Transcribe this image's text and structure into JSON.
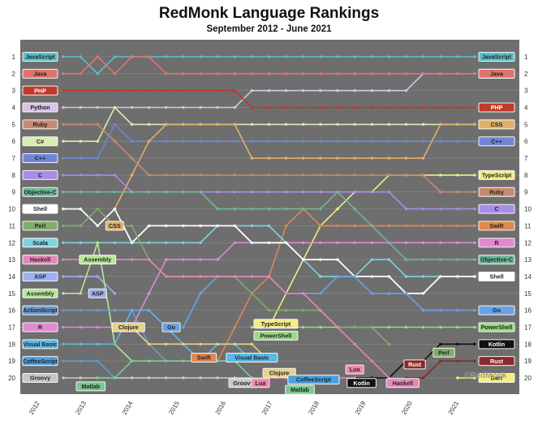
{
  "title": "RedMonk Language Rankings",
  "subtitle": "September 2012 - June 2021",
  "watermark": "©RedMonk",
  "chart_data": {
    "type": "line",
    "title": "RedMonk Language Rankings",
    "subtitle": "September 2012 - June 2021",
    "y_ticks": [
      "1",
      "2",
      "3",
      "4",
      "5",
      "6",
      "7",
      "8",
      "9",
      "10",
      "11",
      "12",
      "13",
      "14",
      "15",
      "16",
      "17",
      "18",
      "19",
      "20"
    ],
    "x_ticks": [
      "2012",
      "2013",
      "2014",
      "2015",
      "2016",
      "2017",
      "2018",
      "2019",
      "2020",
      "2021"
    ],
    "ylim": [
      1,
      20
    ],
    "y_inverted": true,
    "xlim": [
      0,
      24
    ],
    "background": "#6e6e6e",
    "series": [
      {
        "name": "JavaScript",
        "color": "#5bc0c8",
        "start": "JavaScript",
        "end": "JavaScript",
        "start_x": 0,
        "values": [
          1,
          1,
          2,
          1,
          1,
          1,
          1,
          1,
          1,
          1,
          1,
          1,
          1,
          1,
          1,
          1,
          1,
          1,
          1,
          1,
          1,
          1,
          1,
          1,
          1
        ]
      },
      {
        "name": "Python",
        "color": "#d6c4e8",
        "start": "Python",
        "end": "Python",
        "start_x": 0,
        "values": [
          4,
          4,
          4,
          4,
          4,
          4,
          4,
          4,
          4,
          4,
          4,
          3,
          3,
          3,
          3,
          3,
          3,
          3,
          3,
          3,
          3,
          2,
          2,
          2,
          2
        ]
      },
      {
        "name": "Java",
        "color": "#e0746c",
        "start": "Java",
        "end": "Java",
        "start_x": 0,
        "values": [
          2,
          2,
          1,
          2,
          1,
          1,
          2,
          2,
          2,
          2,
          2,
          2,
          2,
          2,
          2,
          2,
          2,
          2,
          2,
          2,
          2,
          2,
          2,
          2,
          2
        ]
      },
      {
        "name": "PHP",
        "color": "#c0392b",
        "start": "PHP",
        "end": "PHP",
        "start_x": 0,
        "values": [
          3,
          3,
          3,
          3,
          3,
          3,
          3,
          3,
          3,
          3,
          3,
          4,
          4,
          4,
          4,
          4,
          4,
          4,
          4,
          4,
          4,
          4,
          4,
          4,
          4
        ]
      },
      {
        "name": "C#",
        "color": "#d9ebb0",
        "start": "C#",
        "end": "C#",
        "start_x": 0,
        "values": [
          6,
          6,
          6,
          4,
          5,
          5,
          5,
          5,
          5,
          5,
          5,
          5,
          5,
          5,
          5,
          5,
          5,
          5,
          5,
          5,
          5,
          5,
          5,
          5,
          5
        ]
      },
      {
        "name": "C++",
        "color": "#6f86d8",
        "start": "C++",
        "end": "C++",
        "start_x": 0,
        "values": [
          7,
          7,
          7,
          5,
          6,
          6,
          6,
          6,
          6,
          6,
          6,
          6,
          6,
          6,
          6,
          6,
          6,
          6,
          6,
          6,
          6,
          6,
          6,
          6,
          6
        ]
      },
      {
        "name": "CSS",
        "color": "#e0b06a",
        "start": "CSS",
        "end": "CSS",
        "start_x": 3,
        "values": [
          null,
          null,
          null,
          10,
          8,
          6,
          5,
          5,
          5,
          5,
          5,
          7,
          7,
          7,
          7,
          7,
          7,
          7,
          7,
          7,
          7,
          7,
          5,
          5,
          5
        ]
      },
      {
        "name": "TypeScript",
        "color": "#f2ee8a",
        "start": "TypeScript",
        "end": "TypeScript",
        "start_x": 12,
        "values": [
          null,
          null,
          null,
          null,
          null,
          null,
          null,
          null,
          null,
          null,
          null,
          null,
          17,
          15,
          13,
          11,
          10,
          9,
          9,
          8,
          8,
          8,
          8,
          8,
          8
        ]
      },
      {
        "name": "Ruby",
        "color": "#c78a72",
        "start": "Ruby",
        "end": "Ruby",
        "start_x": 0,
        "values": [
          5,
          5,
          5,
          6,
          7,
          8,
          8,
          8,
          8,
          8,
          8,
          8,
          8,
          8,
          8,
          8,
          8,
          8,
          8,
          8,
          8,
          8,
          9,
          9,
          9
        ]
      },
      {
        "name": "C",
        "color": "#a98ee8",
        "start": "C",
        "end": "C",
        "start_x": 0,
        "values": [
          8,
          8,
          8,
          8,
          9,
          9,
          9,
          9,
          9,
          9,
          9,
          9,
          9,
          9,
          9,
          9,
          9,
          9,
          9,
          9,
          10,
          10,
          10,
          10,
          10
        ]
      },
      {
        "name": "Swift",
        "color": "#e08850",
        "start": "Swift",
        "end": "Swift",
        "start_x": 9,
        "values": [
          null,
          null,
          null,
          null,
          null,
          null,
          null,
          null,
          null,
          19,
          17,
          15,
          14,
          11,
          10,
          11,
          11,
          11,
          11,
          11,
          11,
          11,
          11,
          11,
          11
        ]
      },
      {
        "name": "R",
        "color": "#e08ad0",
        "start": "R",
        "end": "R",
        "start_x": 0,
        "values": [
          17,
          17,
          17,
          17,
          17,
          15,
          13,
          13,
          13,
          13,
          12,
          12,
          12,
          12,
          12,
          12,
          12,
          12,
          12,
          12,
          12,
          12,
          12,
          12,
          12
        ]
      },
      {
        "name": "Objective-C",
        "color": "#6fb89a",
        "start": "Objective-C",
        "end": "Objective-C",
        "start_x": 0,
        "values": [
          9,
          9,
          9,
          9,
          9,
          9,
          9,
          9,
          9,
          10,
          10,
          10,
          10,
          10,
          10,
          10,
          9,
          10,
          11,
          12,
          13,
          13,
          13,
          13,
          13
        ]
      },
      {
        "name": "Scala",
        "color": "#7fd3e0",
        "start": "Scala",
        "end": "Scala",
        "start_x": 0,
        "values": [
          12,
          12,
          12,
          12,
          12,
          12,
          12,
          12,
          12,
          11,
          11,
          11,
          11,
          12,
          13,
          14,
          14,
          14,
          13,
          13,
          14,
          14,
          14,
          14,
          14
        ]
      },
      {
        "name": "Shell",
        "color": "#ffffff",
        "start": "Shell",
        "end": "Shell",
        "start_x": 0,
        "values": [
          10,
          10,
          11,
          10,
          12,
          11,
          11,
          11,
          11,
          11,
          11,
          12,
          12,
          12,
          13,
          13,
          13,
          14,
          14,
          14,
          15,
          15,
          14,
          14,
          14
        ]
      },
      {
        "name": "Go",
        "color": "#6aa2e6",
        "start": "Go",
        "end": "Go",
        "start_x": 7,
        "values": [
          null,
          null,
          null,
          null,
          null,
          null,
          null,
          17,
          15,
          14,
          14,
          14,
          14,
          15,
          15,
          15,
          14,
          14,
          15,
          15,
          15,
          16,
          16,
          16,
          16
        ]
      },
      {
        "name": "PowerShell",
        "color": "#9fd88a",
        "start": "PowerShell",
        "end": "PowerShell",
        "start_x": 11,
        "values": [
          null,
          null,
          null,
          null,
          null,
          null,
          null,
          null,
          null,
          null,
          null,
          17,
          17,
          17,
          17,
          17,
          17,
          17,
          17,
          17,
          17,
          17,
          17,
          17,
          17
        ]
      },
      {
        "name": "Kotlin",
        "color": "#111111",
        "start": "Kotlin",
        "end": "Kotlin",
        "start_x": 17,
        "values": [
          null,
          null,
          null,
          null,
          null,
          null,
          null,
          null,
          null,
          null,
          null,
          null,
          null,
          null,
          null,
          null,
          null,
          20,
          20,
          20,
          19,
          19,
          18,
          18,
          18
        ]
      },
      {
        "name": "Rust",
        "color": "#8b2a2a",
        "start": "Rust",
        "end": "Rust",
        "start_x": 19,
        "values": [
          null,
          null,
          null,
          null,
          null,
          null,
          null,
          null,
          null,
          null,
          null,
          null,
          null,
          null,
          null,
          null,
          null,
          null,
          null,
          null,
          20,
          20,
          19,
          19,
          19
        ]
      },
      {
        "name": "Dart",
        "color": "#f7f07a",
        "start": null,
        "end": "Dart",
        "start_x": 23,
        "values": [
          null,
          null,
          null,
          null,
          null,
          null,
          null,
          null,
          null,
          null,
          null,
          null,
          null,
          null,
          null,
          null,
          null,
          null,
          null,
          null,
          null,
          null,
          null,
          20,
          20
        ]
      },
      {
        "name": "Perl",
        "color": "#7fae6a",
        "start": "Perl",
        "end": null,
        "start_x": 0,
        "values": [
          11,
          11,
          10,
          11,
          11,
          13,
          14,
          14,
          14,
          14,
          14,
          15,
          16,
          16,
          16,
          16,
          17,
          17,
          17,
          18,
          null,
          null,
          null,
          null,
          null
        ]
      },
      {
        "name": "Haskell",
        "color": "#e487b8",
        "start": "Haskell",
        "end": null,
        "start_x": 0,
        "values": [
          13,
          13,
          13,
          13,
          13,
          13,
          14,
          14,
          14,
          14,
          14,
          14,
          14,
          15,
          15,
          16,
          17,
          18,
          19,
          20,
          null,
          null,
          null,
          null,
          null
        ]
      },
      {
        "name": "ASP",
        "color": "#9db0f0",
        "start": "ASP",
        "end": null,
        "start_x": 0,
        "values": [
          14,
          14,
          14,
          15,
          null,
          null,
          null,
          null,
          null,
          null,
          null,
          null,
          null,
          null,
          null,
          null,
          null,
          null,
          null,
          null,
          null,
          null,
          null,
          null,
          null
        ]
      },
      {
        "name": "Assembly",
        "color": "#b7e89a",
        "start": "Assembly",
        "end": null,
        "start_x": 0,
        "values": [
          15,
          15,
          12,
          18,
          19,
          19,
          19,
          19,
          19,
          19,
          19,
          19,
          null,
          null,
          null,
          null,
          null,
          null,
          null,
          null,
          null,
          null,
          null,
          null,
          null
        ]
      },
      {
        "name": "ActionScript",
        "color": "#6a9ad0",
        "start": "ActionScript",
        "end": null,
        "start_x": 0,
        "values": [
          16,
          16,
          16,
          16,
          16,
          18,
          19,
          19,
          null,
          null,
          null,
          null,
          null,
          null,
          null,
          null,
          null,
          null,
          null,
          null,
          null,
          null,
          null,
          null,
          null
        ]
      },
      {
        "name": "Visual Basic",
        "color": "#5ab8e8",
        "start": "Visual Basic",
        "end": null,
        "start_x": 0,
        "values": [
          18,
          18,
          18,
          18,
          16,
          16,
          17,
          18,
          19,
          18,
          18,
          19,
          null,
          null,
          null,
          null,
          null,
          null,
          null,
          null,
          null,
          null,
          null,
          null,
          null
        ]
      },
      {
        "name": "CoffeeScript",
        "color": "#4ea0e0",
        "start": "CoffeeScript",
        "end": null,
        "start_x": 0,
        "values": [
          19,
          19,
          19,
          20,
          20,
          20,
          20,
          20,
          20,
          20,
          20,
          20,
          20,
          20,
          20,
          null,
          null,
          null,
          null,
          null,
          null,
          null,
          null,
          null,
          null
        ]
      },
      {
        "name": "Groovy",
        "color": "#c8c8c8",
        "start": "Groovy",
        "end": null,
        "start_x": 0,
        "values": [
          20,
          20,
          20,
          20,
          20,
          20,
          20,
          20,
          20,
          20,
          20,
          20,
          null,
          null,
          null,
          null,
          null,
          null,
          null,
          null,
          null,
          null,
          null,
          null,
          null
        ]
      },
      {
        "name": "Clojure",
        "color": "#e6d28a",
        "start": "Clojure",
        "end": null,
        "start_x": 4,
        "values": [
          null,
          null,
          null,
          null,
          17,
          18,
          18,
          18,
          18,
          18,
          18,
          18,
          19,
          null,
          null,
          null,
          null,
          null,
          null,
          null,
          null,
          null,
          null,
          null,
          null
        ]
      },
      {
        "name": "Matlab",
        "color": "#7ac890",
        "start": "Matlab",
        "end": null,
        "start_x": 2,
        "values": [
          null,
          null,
          20,
          20,
          19,
          19,
          19,
          19,
          19,
          19,
          19,
          20,
          20,
          20,
          20,
          null,
          null,
          null,
          null,
          null,
          null,
          null,
          null,
          null,
          null
        ]
      },
      {
        "name": "Lua",
        "color": "#ef86b0",
        "start": "Lua",
        "end": null,
        "start_x": 12,
        "values": [
          null,
          null,
          null,
          null,
          null,
          null,
          null,
          null,
          null,
          null,
          null,
          null,
          20,
          20,
          20,
          20,
          20,
          20,
          null,
          null,
          null,
          null,
          null,
          null,
          null
        ]
      }
    ],
    "inline_labels": [
      {
        "text": "CSS",
        "color": "#e0b06a",
        "x": 3,
        "y": 11
      },
      {
        "text": "Assembly",
        "color": "#b7e89a",
        "x": 2,
        "y": 13
      },
      {
        "text": "ASP",
        "color": "#9db0f0",
        "x": 2,
        "y": 15
      },
      {
        "text": "Clojure",
        "color": "#e6d28a",
        "x": 3.8,
        "y": 17
      },
      {
        "text": "Go",
        "color": "#6aa2e6",
        "x": 6.3,
        "y": 17
      },
      {
        "text": "Swift",
        "color": "#e08850",
        "x": 8.2,
        "y": 18.8
      },
      {
        "text": "Visual Basic",
        "color": "#5ab8e8",
        "x": 11,
        "y": 18.8
      },
      {
        "text": "TypeScript",
        "color": "#f2ee8a",
        "x": 12.4,
        "y": 16.8
      },
      {
        "text": "PowerShell",
        "color": "#9fd88a",
        "x": 12.4,
        "y": 17.5
      },
      {
        "text": "Clojure",
        "color": "#e6d28a",
        "x": 12.6,
        "y": 19.7
      },
      {
        "text": "Groovy",
        "color": "#c8c8c8",
        "x": 10.5,
        "y": 20.3
      },
      {
        "text": "Lua",
        "color": "#ef86b0",
        "x": 11.5,
        "y": 20.3
      },
      {
        "text": "CoffeeScript",
        "color": "#4ea0e0",
        "x": 14.6,
        "y": 20.1
      },
      {
        "text": "Matlab",
        "color": "#7ac890",
        "x": 13.8,
        "y": 20.7
      },
      {
        "text": "Lua",
        "color": "#ef86b0",
        "x": 17,
        "y": 19.5
      },
      {
        "text": "Kotlin",
        "color": "#111111",
        "x": 17.4,
        "y": 20.3
      },
      {
        "text": "Haskell",
        "color": "#e487b8",
        "x": 19.8,
        "y": 20.3
      },
      {
        "text": "Rust",
        "color": "#8b2a2a",
        "x": 20.5,
        "y": 19.2
      },
      {
        "text": "Perl",
        "color": "#7fae6a",
        "x": 22.2,
        "y": 18.5
      },
      {
        "text": "Matlab",
        "color": "#7ac890",
        "x": 1.6,
        "y": 20.5
      }
    ]
  }
}
